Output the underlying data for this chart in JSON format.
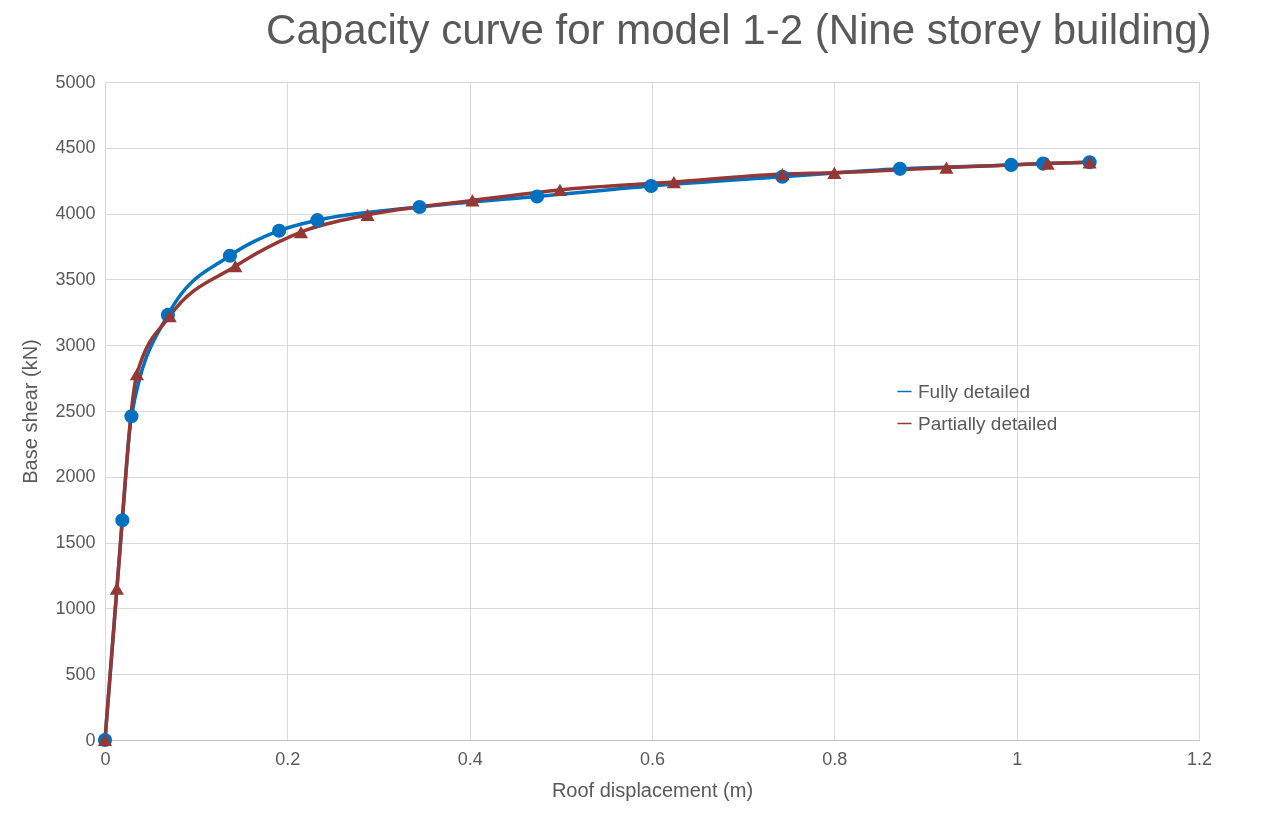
{
  "chart_data": {
    "type": "line",
    "title": "Capacity curve for model 1-2 (Nine storey building)",
    "xlabel": "Roof displacement (m)",
    "ylabel": "Base shear (kN)",
    "xlim": [
      0,
      1.2
    ],
    "xticks": [
      0,
      0.2,
      0.4,
      0.6,
      0.8,
      1,
      1.2
    ],
    "ylim": [
      0,
      5000
    ],
    "yticks": [
      0,
      500,
      1000,
      1500,
      2000,
      2500,
      3000,
      3500,
      4000,
      4500,
      5000
    ],
    "grid": true,
    "legend": "right",
    "series": [
      {
        "name": "Fully detailed",
        "color": "#0070c0",
        "marker": "circle",
        "x": [
          0,
          0.019,
          0.029,
          0.069,
          0.137,
          0.191,
          0.233,
          0.345,
          0.474,
          0.599,
          0.743,
          0.872,
          0.994,
          1.029,
          1.08
        ],
        "values": [
          0,
          1670,
          2460,
          3230,
          3680,
          3870,
          3950,
          4050,
          4130,
          4210,
          4280,
          4340,
          4370,
          4380,
          4390
        ]
      },
      {
        "name": "Partially detailed",
        "color": "#953735",
        "marker": "triangle",
        "x": [
          0,
          0.013,
          0.035,
          0.071,
          0.143,
          0.215,
          0.288,
          0.403,
          0.499,
          0.624,
          0.743,
          0.8,
          0.923,
          1.034,
          1.08
        ],
        "values": [
          0,
          1150,
          2780,
          3220,
          3600,
          3860,
          3990,
          4100,
          4180,
          4240,
          4300,
          4310,
          4350,
          4380,
          4390
        ]
      }
    ]
  }
}
